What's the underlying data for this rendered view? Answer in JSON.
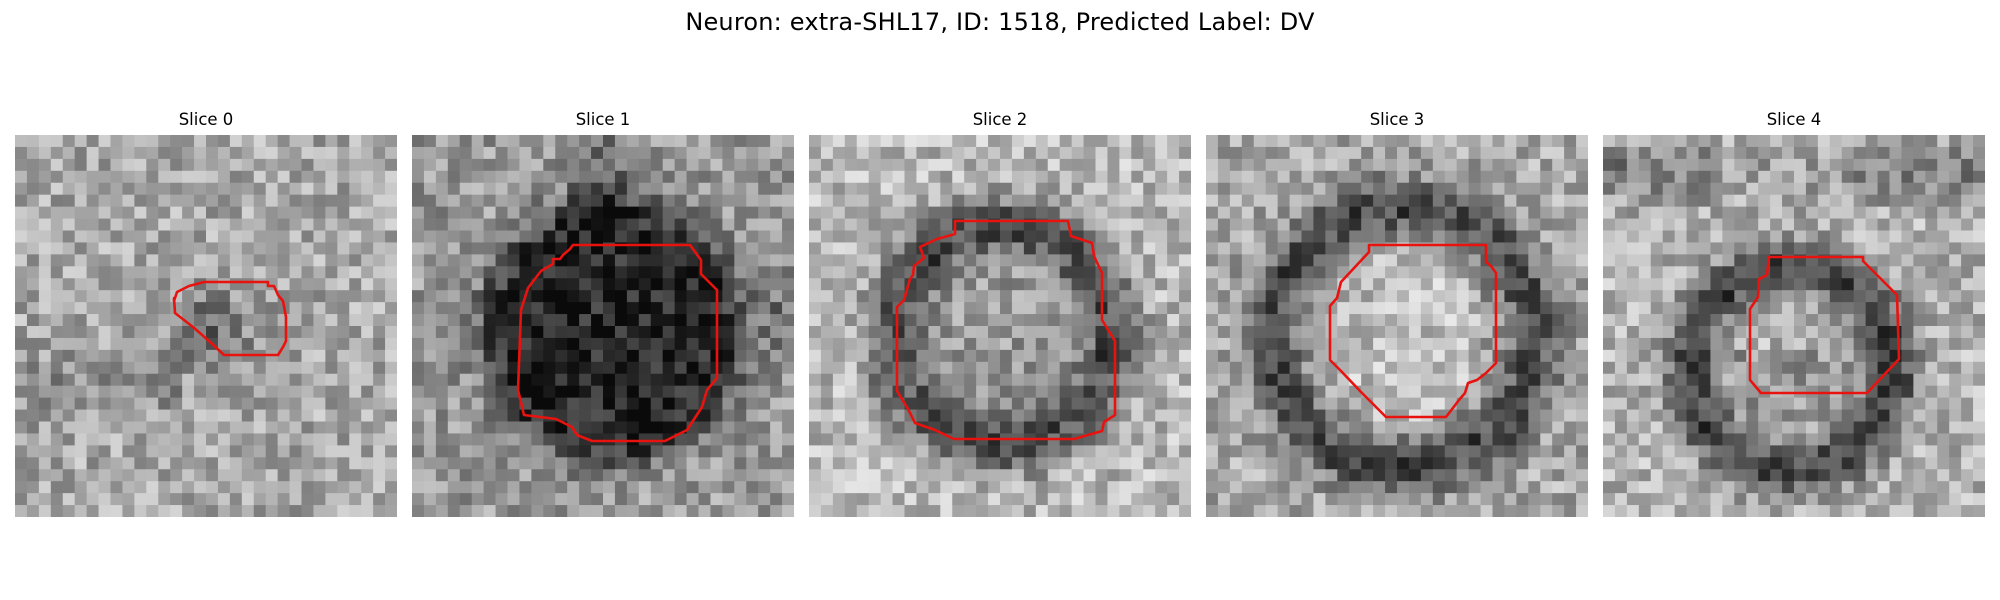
{
  "figure": {
    "title": "Neuron: extra-SHL17, ID: 1518, Predicted Label: DV"
  },
  "panels": [
    {
      "label": "Slice 0",
      "profile": "small_dark_blob"
    },
    {
      "label": "Slice 1",
      "profile": "large_dark_blob"
    },
    {
      "label": "Slice 2",
      "profile": "dark_ring_gray_center"
    },
    {
      "label": "Slice 3",
      "profile": "dark_ring_light_center"
    },
    {
      "label": "Slice 4",
      "profile": "dark_ring_dark_top"
    }
  ],
  "colors": {
    "contour": "#e8130f",
    "background": "#ffffff"
  }
}
